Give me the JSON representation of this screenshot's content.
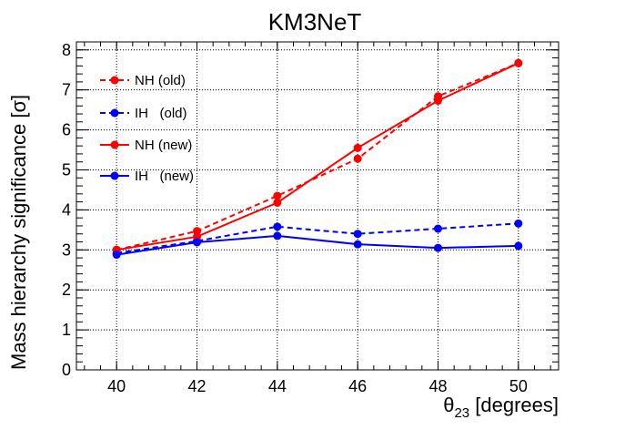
{
  "chart_data": {
    "type": "line",
    "title": "KM3NeT",
    "xlabel_symbol": "θ",
    "xlabel_sub": "23",
    "xlabel_rest": " [degrees]",
    "ylabel": "Mass hierarchy significance [σ]",
    "xlim": [
      39,
      51
    ],
    "ylim": [
      0,
      8.2
    ],
    "x_ticks": [
      40,
      42,
      44,
      46,
      48,
      50
    ],
    "y_ticks": [
      0,
      1,
      2,
      3,
      4,
      5,
      6,
      7,
      8
    ],
    "grid": true,
    "legend_position": "top-left",
    "series": [
      {
        "name": "NH (old)",
        "color": "#ff0000",
        "dash": "dashed",
        "x": [
          40,
          42,
          44,
          46,
          48,
          50
        ],
        "values": [
          3.0,
          3.47,
          4.35,
          5.28,
          6.84,
          7.67
        ]
      },
      {
        "name": "IH   (old)",
        "color": "#0000ff",
        "dash": "dashed",
        "x": [
          40,
          42,
          44,
          46,
          48,
          50
        ],
        "values": [
          2.92,
          3.22,
          3.58,
          3.4,
          3.53,
          3.66
        ]
      },
      {
        "name": "NH (new)",
        "color": "#ff0000",
        "dash": "solid",
        "x": [
          40,
          42,
          44,
          46,
          48,
          50
        ],
        "values": [
          3.0,
          3.33,
          4.18,
          5.55,
          6.73,
          7.67
        ]
      },
      {
        "name": "IH   (new)",
        "color": "#0000ff",
        "dash": "solid",
        "x": [
          40,
          42,
          44,
          46,
          48,
          50
        ],
        "values": [
          2.88,
          3.19,
          3.35,
          3.14,
          3.05,
          3.1
        ]
      }
    ]
  }
}
